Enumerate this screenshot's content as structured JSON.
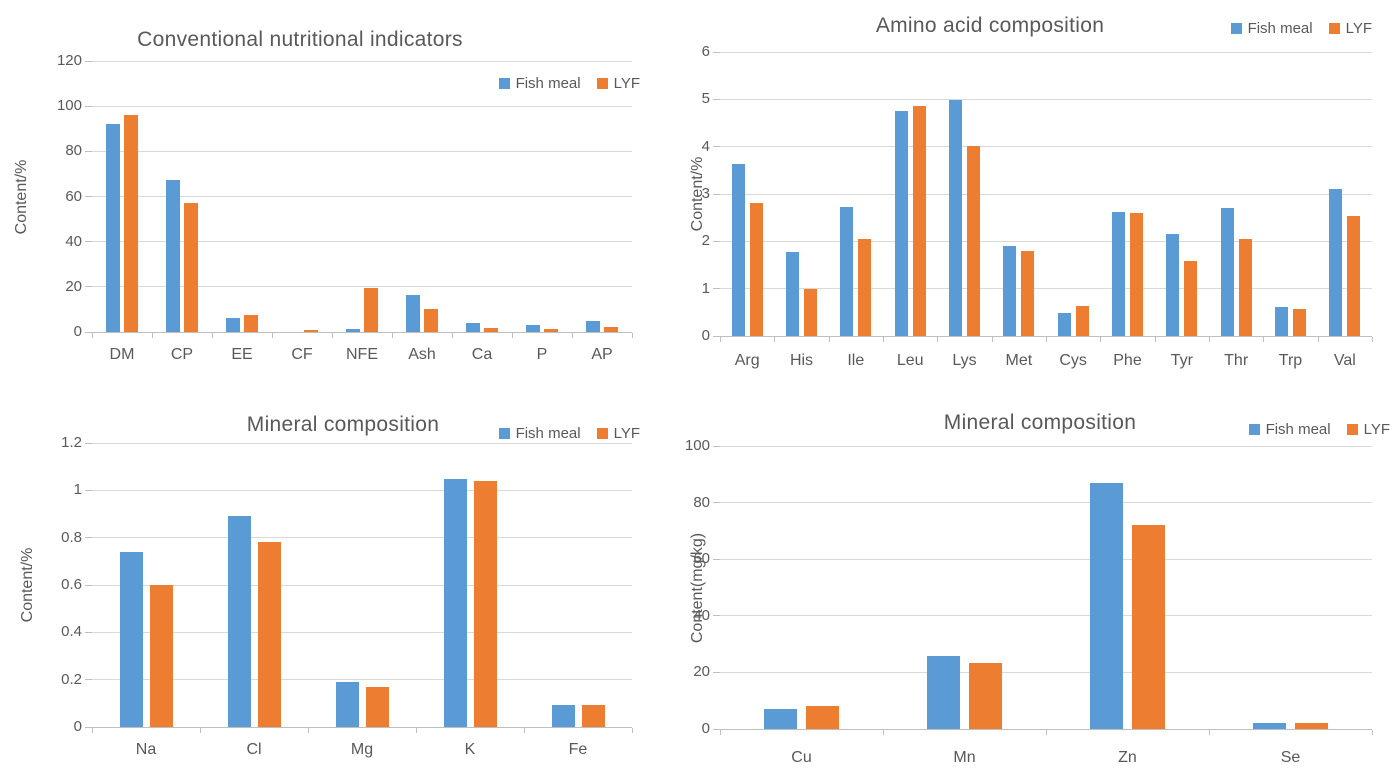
{
  "colors": {
    "fish_meal": "#5B9BD5",
    "lyf": "#ED7D31",
    "title_text": "#595959",
    "axis_text": "#595959",
    "gridline": "#D9D9D9",
    "axis_line": "#BFBFBF",
    "background": "#ffffff"
  },
  "legend": {
    "fish_meal_label": "Fish meal",
    "lyf_label": "LYF"
  },
  "chart_data": [
    {
      "id": "conventional",
      "type": "bar",
      "title": "Conventional nutritional indicators",
      "xlabel": "",
      "ylabel": "Content/%",
      "ylim": [
        0,
        120
      ],
      "yticks": [
        0,
        20,
        40,
        60,
        80,
        100,
        120
      ],
      "ytick_labels": [
        "0",
        "20",
        "40",
        "60",
        "80",
        "100",
        "120"
      ],
      "grid": true,
      "legend_position": "inside-top-right",
      "categories": [
        "DM",
        "CP",
        "EE",
        "CF",
        "NFE",
        "Ash",
        "Ca",
        "P",
        "AP"
      ],
      "series": [
        {
          "name": "Fish meal",
          "values": [
            92,
            67.5,
            6.4,
            0,
            1.4,
            16.3,
            4.0,
            3.0,
            4.9
          ]
        },
        {
          "name": "LYF",
          "values": [
            96,
            57,
            7.6,
            1.0,
            19.7,
            10.4,
            1.9,
            1.2,
            2.2
          ]
        }
      ]
    },
    {
      "id": "amino",
      "type": "bar",
      "title": "Amino acid composition",
      "xlabel": "",
      "ylabel": "Content/%",
      "ylim": [
        0,
        6
      ],
      "yticks": [
        0,
        1,
        2,
        3,
        4,
        5,
        6
      ],
      "ytick_labels": [
        "0",
        "1",
        "2",
        "3",
        "4",
        "5",
        "6"
      ],
      "grid": true,
      "legend_position": "top-right",
      "categories": [
        "Arg",
        "His",
        "Ile",
        "Leu",
        "Lys",
        "Met",
        "Cys",
        "Phe",
        "Tyr",
        "Thr",
        "Trp",
        "Val"
      ],
      "series": [
        {
          "name": "Fish meal",
          "values": [
            3.63,
            1.78,
            2.72,
            4.75,
            4.98,
            1.9,
            0.49,
            2.62,
            2.16,
            2.71,
            0.62,
            3.1
          ]
        },
        {
          "name": "LYF",
          "values": [
            2.81,
            1.0,
            2.04,
            4.86,
            4.02,
            1.79,
            0.64,
            2.6,
            1.59,
            2.04,
            0.57,
            2.54
          ]
        }
      ]
    },
    {
      "id": "mineral-percent",
      "type": "bar",
      "title": "Mineral composition",
      "xlabel": "",
      "ylabel": "Content/%",
      "ylim": [
        0,
        1.2
      ],
      "yticks": [
        0,
        0.2,
        0.4,
        0.6,
        0.8,
        1,
        1.2
      ],
      "ytick_labels": [
        "0",
        "0.2",
        "0.4",
        "0.6",
        "0.8",
        "1",
        "1.2"
      ],
      "grid": true,
      "legend_position": "top-right",
      "categories": [
        "Na",
        "Cl",
        "Mg",
        "K",
        "Fe"
      ],
      "series": [
        {
          "name": "Fish meal",
          "values": [
            0.74,
            0.89,
            0.19,
            1.05,
            0.095
          ]
        },
        {
          "name": "LYF",
          "values": [
            0.6,
            0.78,
            0.17,
            1.04,
            0.095
          ]
        }
      ]
    },
    {
      "id": "mineral-mgkg",
      "type": "bar",
      "title": "Mineral composition",
      "xlabel": "",
      "ylabel": "Content(mg/kg)",
      "ylim": [
        0,
        100
      ],
      "yticks": [
        0,
        20,
        40,
        60,
        80,
        100
      ],
      "ytick_labels": [
        "0",
        "20",
        "40",
        "60",
        "80",
        "100"
      ],
      "grid": true,
      "legend_position": "top-right",
      "categories": [
        "Cu",
        "Mn",
        "Zn",
        "Se"
      ],
      "series": [
        {
          "name": "Fish meal",
          "values": [
            7.1,
            25.8,
            86.8,
            2.0
          ]
        },
        {
          "name": "LYF",
          "values": [
            8.2,
            23.3,
            72.2,
            2.0
          ]
        }
      ]
    }
  ]
}
